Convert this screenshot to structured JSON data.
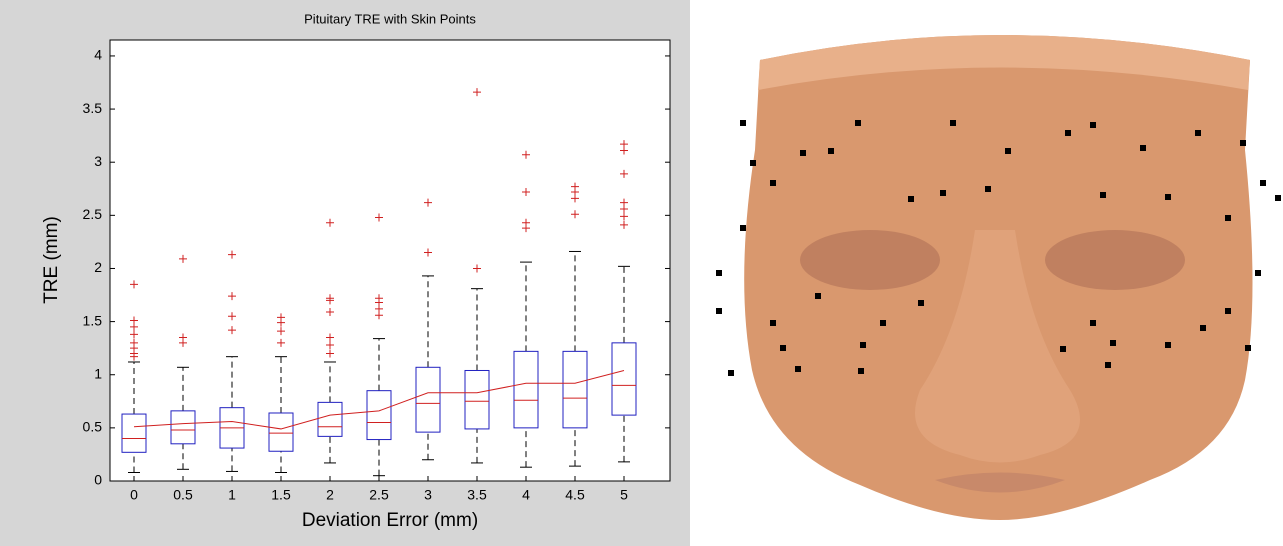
{
  "chart_data": {
    "type": "box",
    "title": "Pituitary TRE with Skin Points",
    "xlabel": "Deviation Error (mm)",
    "ylabel": "TRE (mm)",
    "categories": [
      "0",
      "0.5",
      "1",
      "1.5",
      "2",
      "2.5",
      "3",
      "3.5",
      "4",
      "4.5",
      "5"
    ],
    "box_color": "#2020c0",
    "median_color": "#d02020",
    "outlier_color": "#d02020",
    "whisker_color": "#000000",
    "min": [
      0.08,
      0.11,
      0.09,
      0.08,
      0.17,
      0.05,
      0.2,
      0.17,
      0.13,
      0.14,
      0.18
    ],
    "q1": [
      0.27,
      0.35,
      0.31,
      0.28,
      0.42,
      0.39,
      0.46,
      0.49,
      0.5,
      0.5,
      0.62
    ],
    "median": [
      0.4,
      0.48,
      0.5,
      0.45,
      0.51,
      0.55,
      0.73,
      0.75,
      0.76,
      0.78,
      0.9
    ],
    "q3": [
      0.63,
      0.66,
      0.69,
      0.64,
      0.74,
      0.85,
      1.07,
      1.04,
      1.22,
      1.22,
      1.3
    ],
    "max": [
      1.12,
      1.07,
      1.17,
      1.17,
      1.12,
      1.34,
      1.93,
      1.81,
      2.06,
      2.16,
      2.02
    ],
    "outliers": [
      [
        1.85,
        1.51,
        1.45,
        1.38,
        1.3,
        1.25,
        1.2,
        1.17
      ],
      [
        2.09,
        1.35,
        1.3
      ],
      [
        2.13,
        1.74,
        1.55,
        1.42
      ],
      [
        1.54,
        1.49,
        1.41,
        1.3
      ],
      [
        2.43,
        1.72,
        1.7,
        1.59,
        1.35,
        1.28,
        1.2
      ],
      [
        2.48,
        1.72,
        1.68,
        1.62,
        1.56
      ],
      [
        2.62,
        2.15
      ],
      [
        3.66,
        2.0
      ],
      [
        3.07,
        2.72,
        2.43,
        2.38
      ],
      [
        2.77,
        2.72,
        2.66,
        2.51
      ],
      [
        3.17,
        3.11,
        2.89,
        2.62,
        2.56,
        2.49,
        2.41
      ]
    ],
    "mean": [
      0.51,
      0.54,
      0.56,
      0.49,
      0.62,
      0.66,
      0.83,
      0.83,
      0.92,
      0.92,
      1.04
    ],
    "mean_color": "#d02020",
    "ylim": [
      0,
      4.15
    ],
    "yticks": [
      0,
      0.5,
      1,
      1.5,
      2,
      2.5,
      3,
      3.5,
      4
    ]
  }
}
